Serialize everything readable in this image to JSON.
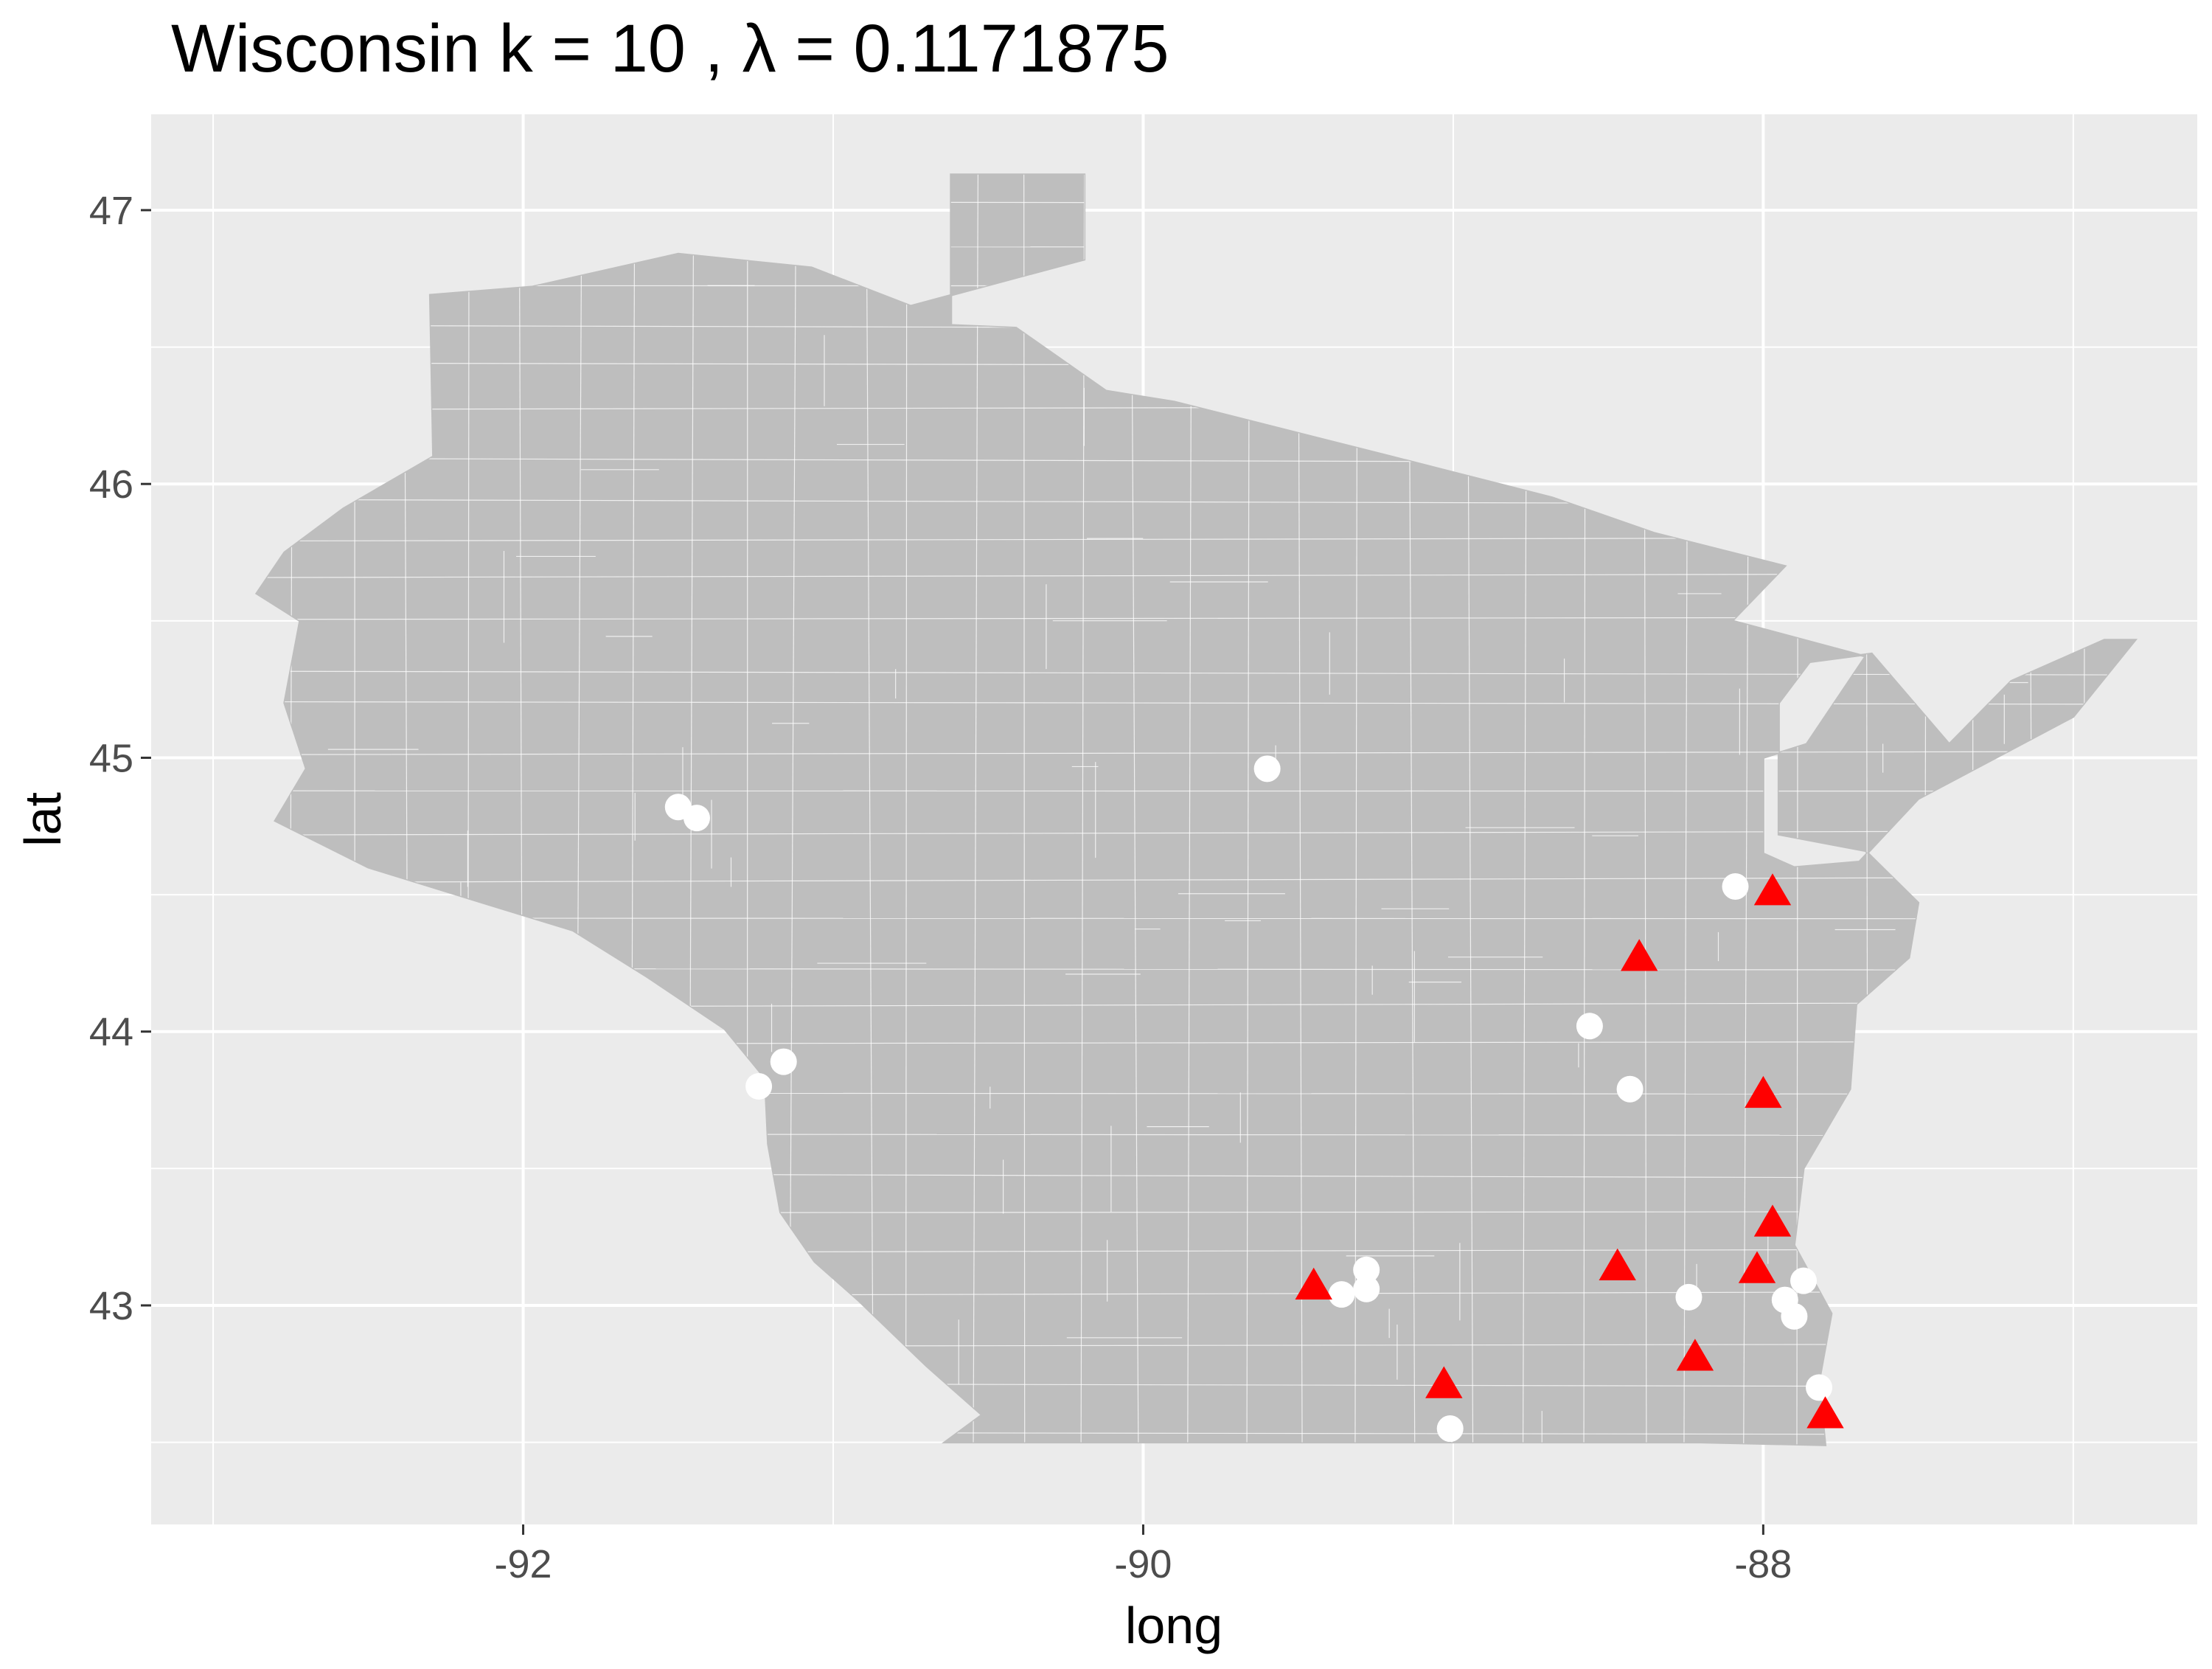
{
  "chart_data": {
    "type": "scatter",
    "title": "Wisconsin  k =  10 ,  λ  =  0.1171875",
    "xlabel": "long",
    "ylabel": "lat",
    "xlim": [
      -93.2,
      -86.6
    ],
    "ylim": [
      42.2,
      47.35
    ],
    "xticks": [
      -92,
      -90,
      -88
    ],
    "yticks": [
      43,
      44,
      45,
      46,
      47
    ],
    "xtick_labels": [
      "-92",
      "-90",
      "-88"
    ],
    "ytick_labels": [
      "43",
      "44",
      "45",
      "46",
      "47"
    ],
    "grid": true,
    "legend": "none",
    "background": "#ebebeb",
    "map_fill": "#bebebe",
    "map_border": "#ffffff",
    "series": [
      {
        "marker": "circle",
        "color": "#ffffff",
        "points": [
          {
            "x": -89.6,
            "y": 44.96
          },
          {
            "x": -91.5,
            "y": 44.82
          },
          {
            "x": -91.44,
            "y": 44.78
          },
          {
            "x": -88.09,
            "y": 44.53
          },
          {
            "x": -88.56,
            "y": 44.02
          },
          {
            "x": -88.43,
            "y": 43.79
          },
          {
            "x": -91.16,
            "y": 43.89
          },
          {
            "x": -91.24,
            "y": 43.8
          },
          {
            "x": -89.36,
            "y": 43.04
          },
          {
            "x": -89.28,
            "y": 43.13
          },
          {
            "x": -89.28,
            "y": 43.06
          },
          {
            "x": -88.24,
            "y": 43.03
          },
          {
            "x": -87.87,
            "y": 43.09
          },
          {
            "x": -87.93,
            "y": 43.02
          },
          {
            "x": -87.9,
            "y": 42.96
          },
          {
            "x": -87.82,
            "y": 42.7
          },
          {
            "x": -89.01,
            "y": 42.55
          }
        ]
      },
      {
        "marker": "triangle",
        "color": "#ff0000",
        "points": [
          {
            "x": -87.97,
            "y": 44.51
          },
          {
            "x": -88.4,
            "y": 44.27
          },
          {
            "x": -88.0,
            "y": 43.77
          },
          {
            "x": -87.97,
            "y": 43.3
          },
          {
            "x": -88.47,
            "y": 43.14
          },
          {
            "x": -88.02,
            "y": 43.13
          },
          {
            "x": -89.45,
            "y": 43.07
          },
          {
            "x": -88.22,
            "y": 42.81
          },
          {
            "x": -89.03,
            "y": 42.71
          },
          {
            "x": -87.8,
            "y": 42.6
          }
        ]
      }
    ]
  }
}
